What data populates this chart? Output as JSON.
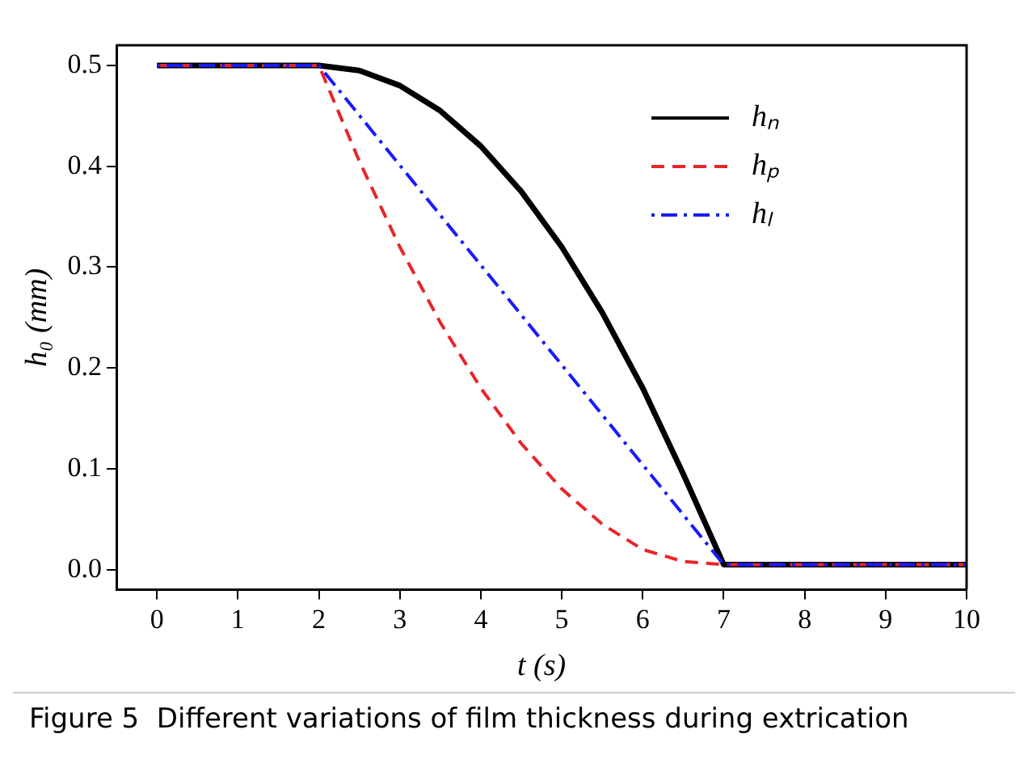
{
  "chart_data": {
    "type": "line",
    "xlabel": "t (s)",
    "ylabel": "h₀ (mm)",
    "annotations": [
      "Figure 5  Different variations of film thickness during extrication"
    ],
    "xlim": [
      -0.5,
      10
    ],
    "xticks": [
      0,
      1,
      2,
      3,
      4,
      5,
      6,
      7,
      8,
      9,
      10
    ],
    "ylim": [
      -0.02,
      0.52
    ],
    "yticks": [
      {
        "value": 0,
        "label": "0.0"
      },
      0.1,
      0.2,
      0.3,
      0.4,
      0.5
    ],
    "grid": false,
    "legend": "top right",
    "marker": "none",
    "series": [
      {
        "name": "hₙ",
        "color": "#000000",
        "line_style": "solid",
        "x": [
          0,
          2,
          2.5,
          3,
          3.5,
          4,
          4.5,
          5,
          5.5,
          6,
          6.5,
          7,
          10
        ],
        "values": [
          0.5,
          0.5,
          0.495,
          0.48,
          0.455,
          0.42,
          0.375,
          0.32,
          0.255,
          0.18,
          0.095,
          0.005,
          0.005
        ]
      },
      {
        "name": "hₚ",
        "color": "#e8252a",
        "line_style": "dashed",
        "x": [
          0,
          2,
          2.5,
          3,
          3.5,
          4,
          4.5,
          5,
          5.5,
          6,
          6.5,
          7,
          10
        ],
        "values": [
          0.5,
          0.5,
          0.405,
          0.32,
          0.245,
          0.18,
          0.125,
          0.08,
          0.045,
          0.02,
          0.008,
          0.005,
          0.005
        ]
      },
      {
        "name": "hₗ",
        "color": "#1a1aff",
        "line_style": "dashdot",
        "x": [
          0,
          2,
          7,
          10
        ],
        "values": [
          0.5,
          0.5,
          0.005,
          0.005
        ]
      }
    ]
  }
}
